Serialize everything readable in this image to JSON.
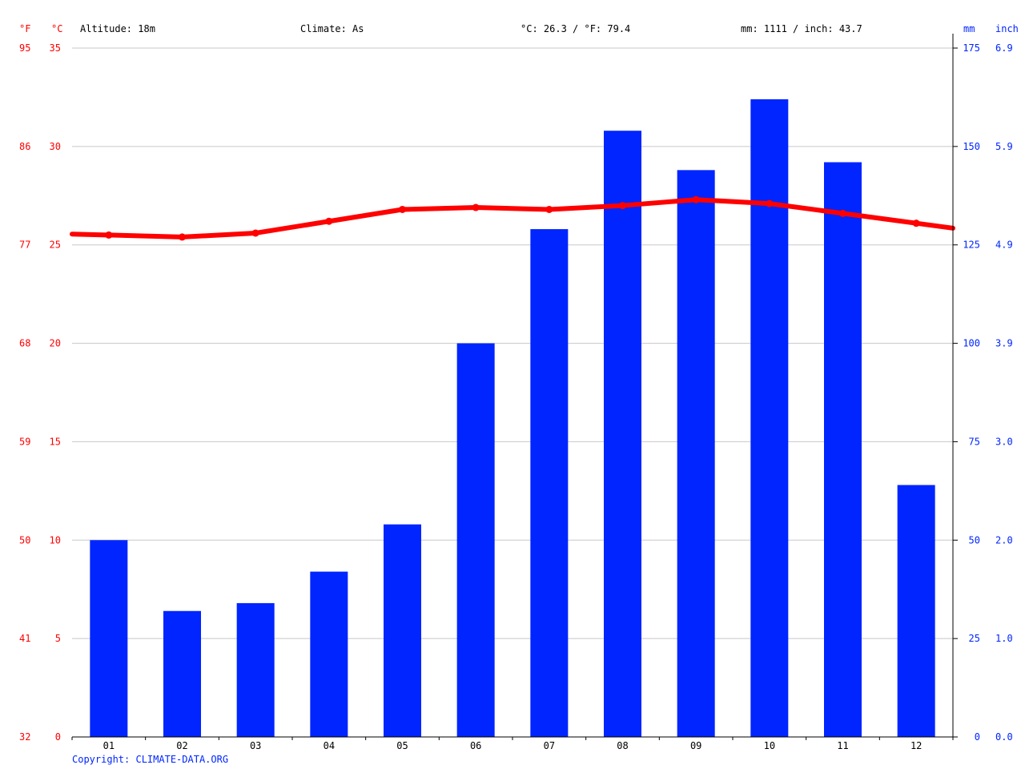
{
  "header": {
    "altitude": "Altitude: 18m",
    "climate": "Climate: As",
    "temp_avg": "°C: 26.3 / °F: 79.4",
    "precip_total": "mm: 1111 / inch: 43.7",
    "unit_f": "°F",
    "unit_c": "°C",
    "unit_mm": "mm",
    "unit_inch": "inch"
  },
  "footer": {
    "copyright": "Copyright: CLIMATE-DATA.ORG"
  },
  "colors": {
    "temperature": "#ff0000",
    "precipitation": "#0025ff",
    "grid": "#c8c8c8"
  },
  "chart_data": {
    "type": "bar",
    "categories": [
      "01",
      "02",
      "03",
      "04",
      "05",
      "06",
      "07",
      "08",
      "09",
      "10",
      "11",
      "12"
    ],
    "series": [
      {
        "type": "bar",
        "axis": "right",
        "values": [
          50,
          32,
          34,
          42,
          54,
          100,
          129,
          154,
          144,
          162,
          146,
          64
        ]
      },
      {
        "type": "line",
        "axis": "left",
        "values": [
          25.5,
          25.4,
          25.6,
          26.2,
          26.8,
          26.9,
          26.8,
          27.0,
          27.3,
          27.1,
          26.6,
          26.1
        ]
      }
    ],
    "left_axis_c": {
      "ticks": [
        "35",
        "30",
        "25",
        "20",
        "15",
        "10",
        "5",
        "0"
      ],
      "ylim": [
        0,
        35
      ]
    },
    "left_axis_f": {
      "ticks": [
        "95",
        "86",
        "77",
        "68",
        "59",
        "50",
        "41",
        "32"
      ]
    },
    "right_axis_mm": {
      "ticks": [
        "175",
        "150",
        "125",
        "100",
        "75",
        "50",
        "25",
        "0"
      ],
      "ylim": [
        0,
        175
      ]
    },
    "right_axis_inch": {
      "ticks": [
        "6.9",
        "5.9",
        "4.9",
        "3.9",
        "3.0",
        "2.0",
        "1.0",
        "0.0"
      ]
    },
    "grid": true
  }
}
